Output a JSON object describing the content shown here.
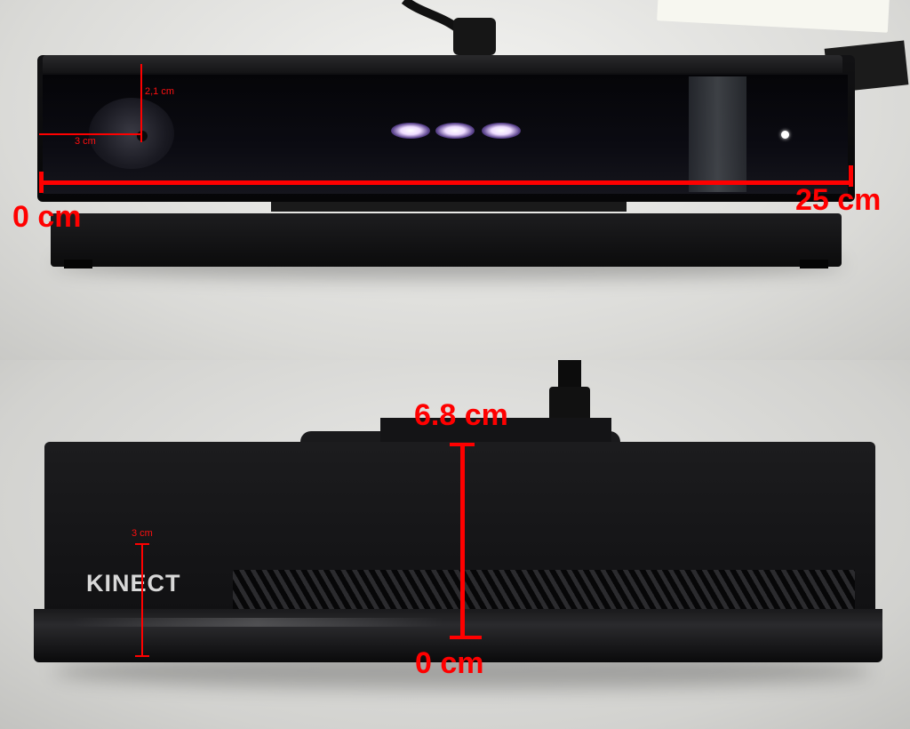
{
  "panels": [
    {
      "name": "front-view",
      "labels": {
        "left_end": "0 cm",
        "right_end": "25 cm",
        "lens_height": "2,1 cm",
        "lens_width": "3 cm"
      }
    },
    {
      "name": "top-view",
      "labels": {
        "brand": "KINECT",
        "top_end": "6.8 cm",
        "bottom_end": "0 cm",
        "side": "3 cm"
      }
    }
  ],
  "colors": {
    "annotation": "#ff0000",
    "device_body": "#0e0e10",
    "led_glow": "#e6d6ff"
  },
  "icon_names": [
    "cable",
    "sensor-lens",
    "ir-emitter-led",
    "indicator-led",
    "vent-grille"
  ]
}
